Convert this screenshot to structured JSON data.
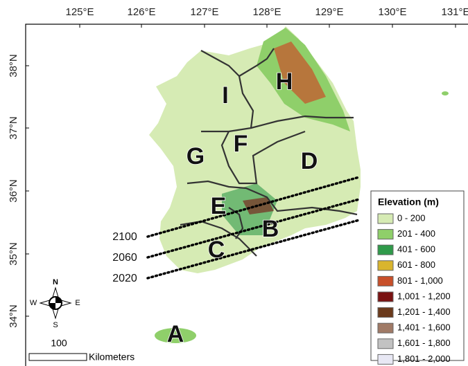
{
  "longitude_labels": [
    "125°E",
    "126°E",
    "127°E",
    "128°E",
    "129°E",
    "130°E",
    "131°E"
  ],
  "latitude_labels": [
    "38°N",
    "37°N",
    "36°N",
    "35°N",
    "34°N"
  ],
  "regions": [
    "H",
    "I",
    "F",
    "G",
    "D",
    "E",
    "B",
    "C",
    "A"
  ],
  "year_lines": [
    "2100",
    "2060",
    "2020"
  ],
  "legend": {
    "title": "Elevation (m)",
    "items": [
      {
        "label": "0 - 200",
        "color": "#d6ebb4"
      },
      {
        "label": "201 - 400",
        "color": "#8fcf6a"
      },
      {
        "label": "401 - 600",
        "color": "#2f9a4a"
      },
      {
        "label": "601 - 800",
        "color": "#d9b52e"
      },
      {
        "label": "801 - 1,000",
        "color": "#c8502a"
      },
      {
        "label": "1,001 - 1,200",
        "color": "#7a1212"
      },
      {
        "label": "1,201 - 1,400",
        "color": "#6b3a1c"
      },
      {
        "label": "1,401 - 1,600",
        "color": "#a07a66"
      },
      {
        "label": "1,601 - 1,800",
        "color": "#c2c2c2"
      },
      {
        "label": "1,801 - 2,000",
        "color": "#e8e8f4"
      }
    ]
  },
  "compass": {
    "north": "N",
    "south": "S",
    "east": "E",
    "west": "W"
  },
  "scale": {
    "value": "100",
    "unit": "Kilometers"
  }
}
